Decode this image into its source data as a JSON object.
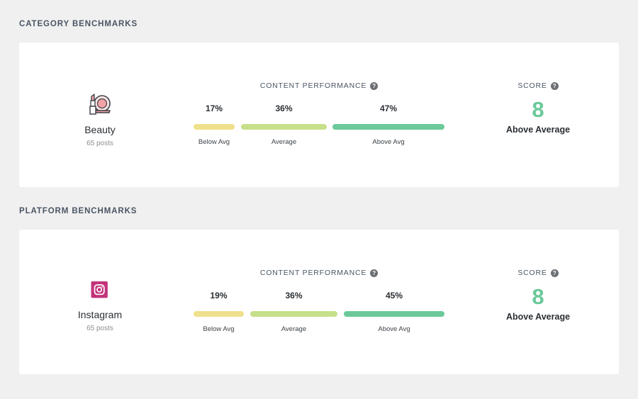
{
  "colors": {
    "below_avg": "#efe08c",
    "average": "#c6e08a",
    "above_avg": "#6bc99a",
    "score": "#6bc99a"
  },
  "category": {
    "section_title": "CATEGORY BENCHMARKS",
    "entity": {
      "name": "Beauty",
      "posts": "65 posts",
      "icon": "makeup-compact-lipstick-icon"
    },
    "performance_title": "CONTENT PERFORMANCE",
    "segments": [
      {
        "label": "Below Avg",
        "percent": "17%",
        "value": 17
      },
      {
        "label": "Average",
        "percent": "36%",
        "value": 36
      },
      {
        "label": "Above Avg",
        "percent": "47%",
        "value": 47
      }
    ],
    "score_title": "SCORE",
    "score_value": "8",
    "score_text": "Above Average"
  },
  "platform": {
    "section_title": "PLATFORM BENCHMARKS",
    "entity": {
      "name": "Instagram",
      "posts": "65 posts",
      "icon": "instagram-icon"
    },
    "performance_title": "CONTENT PERFORMANCE",
    "segments": [
      {
        "label": "Below Avg",
        "percent": "19%",
        "value": 19
      },
      {
        "label": "Average",
        "percent": "36%",
        "value": 36
      },
      {
        "label": "Above Avg",
        "percent": "45%",
        "value": 45
      }
    ],
    "score_title": "SCORE",
    "score_value": "8",
    "score_text": "Above Average"
  }
}
